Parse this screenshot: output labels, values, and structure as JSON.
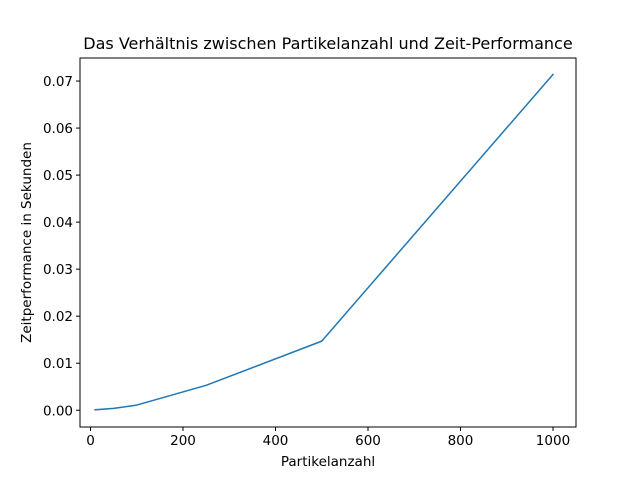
{
  "chart_data": {
    "type": "line",
    "title": "Das Verhältnis zwischen Partikelanzahl und Zeit-Performance",
    "xlabel": "Partikelanzahl",
    "ylabel": "Zeitperformance in Sekunden",
    "xlim": [
      -22.75,
      1049.75
    ],
    "ylim": [
      -0.00356,
      0.0749
    ],
    "xticks": [
      0,
      200,
      400,
      600,
      800,
      1000
    ],
    "xtick_labels": [
      "0",
      "200",
      "400",
      "600",
      "800",
      "1000"
    ],
    "yticks": [
      0.0,
      0.01,
      0.02,
      0.03,
      0.04,
      0.05,
      0.06,
      0.07
    ],
    "ytick_labels": [
      "0.00",
      "0.01",
      "0.02",
      "0.03",
      "0.04",
      "0.05",
      "0.06",
      "0.07"
    ],
    "grid": false,
    "series": [
      {
        "color": "#1f77b4",
        "x": [
          10,
          50,
          100,
          250,
          500,
          1000
        ],
        "y": [
          0.0001,
          0.0004,
          0.0011,
          0.0053,
          0.0147,
          0.0714
        ]
      }
    ]
  }
}
